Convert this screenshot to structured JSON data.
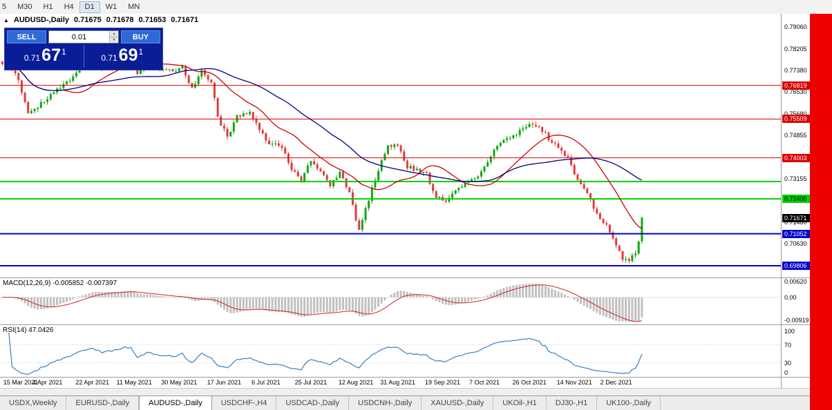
{
  "toolbar": {
    "timeframes": [
      "5",
      "M30",
      "H1",
      "H4",
      "D1",
      "W1",
      "MN"
    ],
    "active": "D1"
  },
  "chart_header": {
    "collapse_icon": "▲",
    "symbol": "AUDUSD-,Daily",
    "open": "0.71675",
    "high": "0.71678",
    "low": "0.71653",
    "close": "0.71671"
  },
  "trade_panel": {
    "sell_label": "SELL",
    "buy_label": "BUY",
    "lot_value": "0.01",
    "spin_up": "▲",
    "spin_down": "▼",
    "sell_price": {
      "prefix": "0.71",
      "big": "67",
      "sup": "1"
    },
    "buy_price": {
      "prefix": "0.71",
      "big": "69",
      "sup": "1"
    }
  },
  "main_chart": {
    "axis_ticks": [
      "0.79060",
      "0.78205",
      "0.77380",
      "0.76530",
      "0.75680",
      "0.74855",
      "0.74005",
      "0.73155",
      "0.72330",
      "0.71480",
      "0.70630",
      "0.69780"
    ]
  },
  "macd": {
    "label": "MACD(12,26,9) -0.005852 -0.007397",
    "axis_ticks": [
      "0.00620",
      "0.00",
      "-0.00919"
    ],
    "axis_values": [
      0.0062,
      0,
      -0.00919
    ]
  },
  "rsi": {
    "label": "RSI(14) 47.0426",
    "axis_ticks": [
      "100",
      "70",
      "30",
      "0"
    ],
    "axis_values": [
      100,
      70,
      30,
      0
    ]
  },
  "date_axis": {
    "labels": [
      [
        "15 Mar 2021",
        0
      ],
      [
        "4 Apr 2021",
        14
      ],
      [
        "22 Apr 2021",
        28
      ],
      [
        "11 May 2021",
        41
      ],
      [
        "30 May 2021",
        55
      ],
      [
        "17 Jun 2021",
        69
      ],
      [
        "6 Jul 2021",
        82
      ],
      [
        "25 Jul 2021",
        96
      ],
      [
        "12 Aug 2021",
        110
      ],
      [
        "31 Aug 2021",
        123
      ],
      [
        "19 Sep 2021",
        137
      ],
      [
        "7 Oct 2021",
        150
      ],
      [
        "26 Oct 2021",
        164
      ],
      [
        "14 Nov 2021",
        178
      ],
      [
        "2 Dec 2021",
        191
      ]
    ]
  },
  "tabbar": {
    "tabs": [
      "USDX,Weekly",
      "EURUSD-,Daily",
      "AUDUSD-,Daily",
      "USDCHF-,H4",
      "USDCAD-,Daily",
      "USDCNH-,Daily",
      "XAUUSD-,Daily",
      "UKOil-,H1",
      "DJ30-,H1",
      "UK100-,Daily"
    ],
    "active": "AUDUSD-,Daily"
  },
  "chart_data": {
    "type": "candlestick",
    "symbol": "AUDUSD",
    "timeframe": "Daily",
    "visible_price_range": [
      0.6935,
      0.796
    ],
    "levels": [
      {
        "price": 0.76819,
        "label": "0.76819",
        "color": "red"
      },
      {
        "price": 0.75509,
        "label": "0.75509",
        "color": "red"
      },
      {
        "price": 0.74003,
        "label": "0.74003",
        "color": "red"
      },
      {
        "price": 0.7308,
        "label": null,
        "color": "green"
      },
      {
        "price": 0.72406,
        "label": "0.72406",
        "color": "green"
      },
      {
        "price": 0.71052,
        "label": "0.71052",
        "color": "blue"
      },
      {
        "price": 0.69806,
        "label": "0.69806",
        "color": "blue"
      }
    ],
    "current_price": {
      "price": 0.71671,
      "label": "0.71671"
    },
    "bar_count": 200,
    "price_path": [
      [
        0,
        0.7758
      ],
      [
        2,
        0.7772
      ],
      [
        5,
        0.77
      ],
      [
        8,
        0.757
      ],
      [
        10,
        0.7588
      ],
      [
        13,
        0.7622
      ],
      [
        17,
        0.7662
      ],
      [
        21,
        0.7703
      ],
      [
        25,
        0.7758
      ],
      [
        28,
        0.7788
      ],
      [
        31,
        0.7744
      ],
      [
        34,
        0.7768
      ],
      [
        38,
        0.7797
      ],
      [
        40,
        0.7803
      ],
      [
        42,
        0.7726
      ],
      [
        45,
        0.7768
      ],
      [
        48,
        0.7752
      ],
      [
        53,
        0.774
      ],
      [
        56,
        0.7752
      ],
      [
        59,
        0.7666
      ],
      [
        62,
        0.7735
      ],
      [
        65,
        0.7698
      ],
      [
        67,
        0.7556
      ],
      [
        70,
        0.7482
      ],
      [
        73,
        0.7562
      ],
      [
        77,
        0.758
      ],
      [
        80,
        0.7506
      ],
      [
        83,
        0.7452
      ],
      [
        87,
        0.7446
      ],
      [
        90,
        0.7352
      ],
      [
        93,
        0.7312
      ],
      [
        96,
        0.7388
      ],
      [
        99,
        0.735
      ],
      [
        102,
        0.7292
      ],
      [
        105,
        0.7344
      ],
      [
        108,
        0.7262
      ],
      [
        111,
        0.7116
      ],
      [
        114,
        0.724
      ],
      [
        117,
        0.7354
      ],
      [
        120,
        0.7444
      ],
      [
        123,
        0.7454
      ],
      [
        126,
        0.7366
      ],
      [
        129,
        0.735
      ],
      [
        132,
        0.7336
      ],
      [
        135,
        0.7246
      ],
      [
        138,
        0.7232
      ],
      [
        141,
        0.727
      ],
      [
        145,
        0.7308
      ],
      [
        149,
        0.7344
      ],
      [
        153,
        0.7434
      ],
      [
        157,
        0.7474
      ],
      [
        161,
        0.7504
      ],
      [
        164,
        0.7536
      ],
      [
        167,
        0.7524
      ],
      [
        170,
        0.7476
      ],
      [
        173,
        0.7436
      ],
      [
        176,
        0.7396
      ],
      [
        179,
        0.7312
      ],
      [
        182,
        0.7256
      ],
      [
        185,
        0.7186
      ],
      [
        188,
        0.7136
      ],
      [
        191,
        0.7062
      ],
      [
        193,
        0.7008
      ],
      [
        195,
        0.6996
      ],
      [
        197,
        0.7032
      ],
      [
        198,
        0.7078
      ],
      [
        199,
        0.71671
      ]
    ],
    "indicators": {
      "ma_fast": {
        "period": 20,
        "color": "#cc0000"
      },
      "ma_slow": {
        "period": 45,
        "color": "#000080"
      },
      "macd": [
        12,
        26,
        9
      ],
      "rsi": 14
    }
  },
  "colors": {
    "up": "#11a611",
    "down": "#e03c3c",
    "level_red": "#e00000",
    "level_green": "#00d200",
    "level_blue": "#0000d2",
    "macd_hist": "#c0c0c0",
    "macd_signal": "#cc2222",
    "rsi_line": "#3a7ebf",
    "right_strip": "#ee0000"
  }
}
